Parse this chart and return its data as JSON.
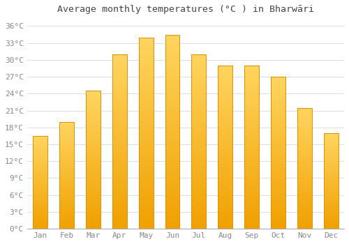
{
  "title": "Average monthly temperatures (°C ) in Bharwāri",
  "months": [
    "Jan",
    "Feb",
    "Mar",
    "Apr",
    "May",
    "Jun",
    "Jul",
    "Aug",
    "Sep",
    "Oct",
    "Nov",
    "Dec"
  ],
  "values": [
    16.5,
    19.0,
    24.5,
    31.0,
    34.0,
    34.5,
    31.0,
    29.0,
    29.0,
    27.0,
    21.5,
    17.0
  ],
  "bar_color_top": "#FFD060",
  "bar_color_bottom": "#F0A000",
  "bar_color_edge": "#E09000",
  "background_color": "#FFFFFF",
  "grid_color": "#DDDDDD",
  "yticks": [
    0,
    3,
    6,
    9,
    12,
    15,
    18,
    21,
    24,
    27,
    30,
    33,
    36
  ],
  "ylim": [
    0,
    37.5
  ],
  "title_fontsize": 9.5,
  "tick_fontsize": 8,
  "text_color": "#888888"
}
